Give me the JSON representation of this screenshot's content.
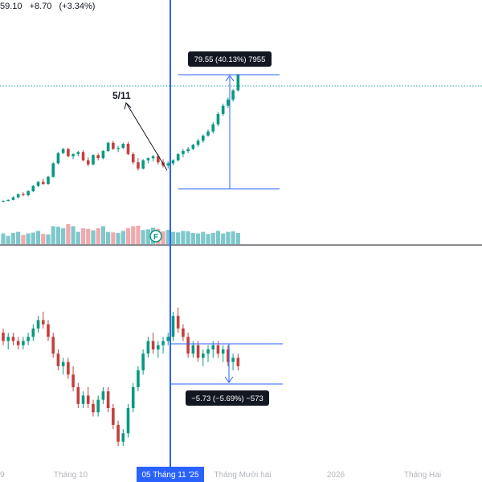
{
  "header": {
    "price_fragment": "59.10",
    "change": "+8.70",
    "change_pct": "(+3.34%)"
  },
  "annotation_text": "5/11",
  "measure_top": {
    "label": "79.55 (40.13%) 7955",
    "color": "#2962ff"
  },
  "measure_bottom": {
    "label": "−5.73 (−5.69%) −573",
    "color": "#2962ff"
  },
  "crosshair_date_label": "05 Tháng 11 '25",
  "x_axis_labels": [
    "9",
    "Tháng 10",
    "Tháng Mười hai",
    "2026",
    "Tháng Hai"
  ],
  "event_marker": {
    "letter": "F",
    "color": "#089981"
  },
  "colors": {
    "up": "#089981",
    "down": "#c3403e",
    "volume_up": "#7ec8cc",
    "volume_down": "#f0a9ad",
    "crosshair": "#2962ff",
    "dotted_level": "#26a69a",
    "axis_text": "#b2b5be"
  },
  "chart_data": [
    {
      "type": "candlestick",
      "panel": "top",
      "series": [
        {
          "name": "",
          "ohlc": [
            [
              102,
              103,
              101,
              102.5
            ],
            [
              102.5,
              104,
              102,
              103.5
            ],
            [
              103.5,
              107,
              103,
              106
            ],
            [
              106,
              110,
              105,
              109
            ],
            [
              109,
              111,
              107,
              108
            ],
            [
              108,
              113,
              107,
              112
            ],
            [
              112,
              118,
              111,
              117
            ],
            [
              117,
              122,
              116,
              121
            ],
            [
              121,
              124,
              118,
              119
            ],
            [
              119,
              127,
              118,
              126
            ],
            [
              126,
              140,
              125,
              139
            ],
            [
              139,
              150,
              138,
              149
            ],
            [
              149,
              154,
              148,
              153
            ],
            [
              153,
              154,
              145,
              146
            ],
            [
              146,
              149,
              143,
              148
            ],
            [
              148,
              151,
              146,
              150
            ],
            [
              150,
              152,
              141,
              142
            ],
            [
              142,
              145,
              136,
              138
            ],
            [
              138,
              148,
              137,
              147
            ],
            [
              147,
              149,
              142,
              144
            ],
            [
              144,
              152,
              143,
              151
            ],
            [
              151,
              160,
              150,
              159
            ],
            [
              159,
              161,
              152,
              153
            ],
            [
              153,
              156,
              150,
              154
            ],
            [
              154,
              159,
              153,
              158
            ],
            [
              158,
              160,
              147,
              148
            ],
            [
              148,
              150,
              138,
              140
            ],
            [
              140,
              144,
              132,
              134
            ],
            [
              134,
              143,
              133,
              142
            ],
            [
              142,
              145,
              139,
              144
            ],
            [
              144,
              147,
              141,
              146
            ],
            [
              146,
              148,
              138,
              140
            ],
            [
              140,
              143,
              135,
              137
            ],
            [
              137,
              141,
              134,
              139
            ],
            [
              139,
              143,
              137,
              142
            ],
            [
              142,
              149,
              141,
              148
            ],
            [
              148,
              153,
              145,
              151
            ],
            [
              151,
              155,
              149,
              153
            ],
            [
              153,
              158,
              152,
              157
            ],
            [
              157,
              163,
              155,
              161
            ],
            [
              161,
              167,
              159,
              166
            ],
            [
              166,
              172,
              165,
              170
            ],
            [
              170,
              179,
              168,
              177
            ],
            [
              177,
              189,
              175,
              187
            ],
            [
              187,
              197,
              185,
              195
            ],
            [
              195,
              203,
              193,
              201
            ],
            [
              201,
              211,
              199,
              210
            ],
            [
              210,
              226,
              209,
              225
            ]
          ]
        }
      ],
      "volume": [
        42,
        32,
        44,
        48,
        36,
        42,
        45,
        52,
        40,
        38,
        70,
        68,
        62,
        78,
        70,
        48,
        62,
        60,
        54,
        62,
        70,
        48,
        46,
        44,
        52,
        62,
        70,
        72,
        55,
        58,
        64,
        60,
        50,
        56,
        48,
        46,
        52,
        50,
        44,
        42,
        48,
        40,
        44,
        52,
        42,
        48,
        50,
        44
      ],
      "measure": {
        "from_price": 137,
        "to_price": 226,
        "change": 79.55,
        "change_pct": 40.13,
        "ticks": 7955
      }
    },
    {
      "type": "candlestick",
      "panel": "bottom",
      "series": [
        {
          "name": "",
          "ohlc": [
            [
              99,
              100,
              96,
              97
            ],
            [
              97,
              99,
              95,
              98
            ],
            [
              98,
              99,
              96,
              97
            ],
            [
              97,
              98,
              95,
              96
            ],
            [
              96,
              98,
              95,
              97
            ],
            [
              97,
              99,
              96,
              98
            ],
            [
              98,
              101,
              97,
              100
            ],
            [
              100,
              103,
              99,
              102
            ],
            [
              102,
              104,
              100,
              101
            ],
            [
              101,
              102,
              97,
              98
            ],
            [
              98,
              99,
              93,
              94
            ],
            [
              94,
              95,
              90,
              91
            ],
            [
              91,
              93,
              89,
              92
            ],
            [
              92,
              93,
              88,
              89
            ],
            [
              89,
              91,
              85,
              86
            ],
            [
              86,
              87,
              81,
              82
            ],
            [
              82,
              85,
              81,
              84
            ],
            [
              84,
              86,
              81,
              82
            ],
            [
              82,
              83,
              79,
              80
            ],
            [
              80,
              84,
              79,
              83
            ],
            [
              83,
              86,
              82,
              85
            ],
            [
              85,
              86,
              80,
              81
            ],
            [
              81,
              82,
              76,
              77
            ],
            [
              77,
              78,
              72,
              73
            ],
            [
              73,
              76,
              72,
              75
            ],
            [
              75,
              82,
              74,
              81
            ],
            [
              81,
              87,
              80,
              86
            ],
            [
              86,
              91,
              85,
              90
            ],
            [
              90,
              95,
              89,
              94
            ],
            [
              94,
              98,
              93,
              97
            ],
            [
              97,
              99,
              94,
              95
            ],
            [
              95,
              97,
              93,
              96
            ],
            [
              96,
              98,
              94,
              97
            ],
            [
              97,
              99,
              96,
              98
            ],
            [
              98,
              104,
              97,
              103
            ],
            [
              103,
              105,
              99,
              100
            ],
            [
              100,
              101,
              97,
              98
            ],
            [
              98,
              99,
              93,
              94
            ],
            [
              94,
              97,
              93,
              96
            ],
            [
              96,
              97,
              92,
              93
            ],
            [
              93,
              95,
              91,
              94
            ],
            [
              94,
              96,
              92,
              95
            ],
            [
              95,
              97,
              93,
              96
            ],
            [
              96,
              97,
              93,
              94
            ],
            [
              94,
              96,
              92,
              95
            ],
            [
              95,
              96,
              91,
              92
            ],
            [
              92,
              94,
              90,
              93
            ],
            [
              93,
              94,
              90,
              91
            ]
          ]
        }
      ],
      "measure": {
        "change": -5.73,
        "change_pct": -5.69,
        "ticks": -573
      }
    }
  ]
}
